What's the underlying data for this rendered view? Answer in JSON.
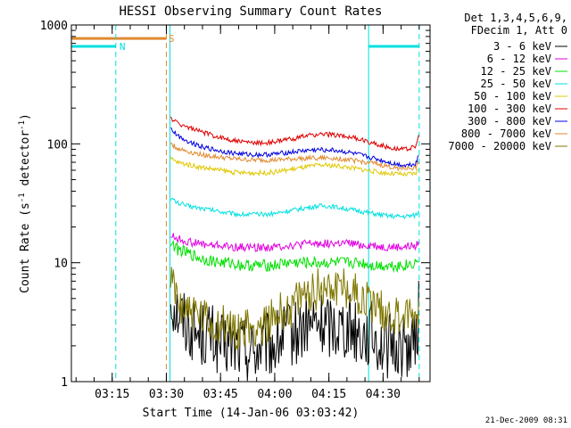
{
  "chart_data": {
    "type": "line",
    "title": "HESSI Observing Summary Count Rates",
    "xlabel": "Start Time (14-Jan-06 03:03:42)",
    "ylabel_main": "Count Rate (s",
    "ylabel_sup1": "-1",
    "ylabel_mid": " detector",
    "ylabel_sup2": "-1",
    "ylabel_end": ")",
    "y_scale": "log",
    "ylim": [
      1,
      1000
    ],
    "xlim": [
      3.0617,
      4.7167
    ],
    "x_ticks": [
      "03:15",
      "03:30",
      "03:45",
      "04:00",
      "04:15",
      "04:30"
    ],
    "y_ticks": [
      "1",
      "10",
      "100",
      "1000"
    ],
    "legend_header": [
      "Det 1,3,4,5,6,9,",
      "FDecim 1, Att 0"
    ],
    "legend_position": "right",
    "footer_date": "21-Dec-2009 08:31",
    "annotations": [
      {
        "text": "N",
        "color": "#00e0e0",
        "x_time": 3.2833,
        "y": 660
      },
      {
        "text": "S",
        "color": "#e08a30",
        "x_time": 3.51,
        "y": 770
      }
    ],
    "flag_bars": [
      {
        "name": "night-bar",
        "color": "#00e0e0",
        "y": 660,
        "start": 3.0617,
        "end": 3.2667
      },
      {
        "name": "saa-bar",
        "color": "#e08a30",
        "y": 770,
        "start": 3.0617,
        "end": 3.5
      },
      {
        "name": "night-bar",
        "color": "#00e0e0",
        "y": 660,
        "start": 4.4333,
        "end": 4.6667
      }
    ],
    "vlines_solid": [
      {
        "x_time": 3.0617,
        "color": "#00e0e0"
      },
      {
        "x_time": 3.5167,
        "color": "#00e0e0"
      },
      {
        "x_time": 4.4333,
        "color": "#00e0e0"
      }
    ],
    "vlines_dashed": [
      {
        "x_time": 3.2667,
        "color": "#00e0e0"
      },
      {
        "x_time": 3.5,
        "color": "#e08a30"
      },
      {
        "x_time": 4.6667,
        "color": "#00e0e0"
      }
    ],
    "series": [
      {
        "name": "3 - 6 keV",
        "color": "#000000",
        "x": [
          3.52,
          3.55,
          3.6,
          3.65,
          3.7,
          3.75,
          3.8,
          3.85,
          3.9,
          3.95,
          4.0,
          4.05,
          4.1,
          4.15,
          4.2,
          4.25,
          4.3,
          4.35,
          4.4,
          4.45,
          4.5,
          4.55,
          4.6,
          4.65,
          4.665
        ],
        "y": [
          5,
          4,
          3,
          2.5,
          2.5,
          2,
          2,
          2,
          1.8,
          2,
          2,
          2.5,
          2.5,
          3,
          3,
          3,
          3,
          3,
          2.5,
          2.5,
          2,
          2,
          2,
          2,
          4
        ]
      },
      {
        "name": "6 - 12 keV",
        "color": "#e000e0",
        "x": [
          3.52,
          3.55,
          3.6,
          3.65,
          3.7,
          3.75,
          3.8,
          3.85,
          3.9,
          3.95,
          4.0,
          4.05,
          4.1,
          4.15,
          4.2,
          4.25,
          4.3,
          4.35,
          4.4,
          4.45,
          4.5,
          4.55,
          4.6,
          4.65,
          4.665
        ],
        "y": [
          17,
          16,
          15,
          14.5,
          14,
          14,
          13.5,
          13.5,
          13.5,
          13.5,
          13.5,
          14,
          14,
          14.5,
          14.5,
          14.5,
          14.5,
          14.5,
          14,
          14,
          13.5,
          13.5,
          13.5,
          14,
          15
        ]
      },
      {
        "name": "12 - 25 keV",
        "color": "#00e000",
        "x": [
          3.52,
          3.55,
          3.6,
          3.65,
          3.7,
          3.75,
          3.8,
          3.85,
          3.9,
          3.95,
          4.0,
          4.05,
          4.1,
          4.15,
          4.2,
          4.25,
          4.3,
          4.35,
          4.4,
          4.45,
          4.5,
          4.55,
          4.6,
          4.65,
          4.665
        ],
        "y": [
          15,
          13,
          12,
          11,
          10.5,
          10,
          10,
          9.5,
          9.5,
          9.5,
          9.5,
          10,
          10,
          10,
          10,
          10,
          10,
          10,
          10,
          9.5,
          9.5,
          9.5,
          9.5,
          10,
          11
        ]
      },
      {
        "name": "25 - 50 keV",
        "color": "#00e0e0",
        "x": [
          3.52,
          3.55,
          3.6,
          3.65,
          3.7,
          3.75,
          3.8,
          3.85,
          3.9,
          3.95,
          4.0,
          4.05,
          4.1,
          4.15,
          4.2,
          4.25,
          4.3,
          4.35,
          4.4,
          4.45,
          4.5,
          4.55,
          4.6,
          4.65,
          4.665
        ],
        "y": [
          35,
          32,
          30,
          29,
          28,
          27,
          26,
          25.5,
          25.5,
          25.5,
          26,
          27,
          28,
          29,
          30,
          30,
          29,
          28,
          27,
          26,
          25,
          24.5,
          24.5,
          25,
          27
        ]
      },
      {
        "name": "50 - 100 keV",
        "color": "#e0c800",
        "x": [
          3.52,
          3.55,
          3.6,
          3.65,
          3.7,
          3.75,
          3.8,
          3.85,
          3.9,
          3.95,
          4.0,
          4.05,
          4.1,
          4.15,
          4.2,
          4.25,
          4.3,
          4.35,
          4.4,
          4.45,
          4.5,
          4.55,
          4.6,
          4.65,
          4.665
        ],
        "y": [
          75,
          70,
          67,
          64,
          62,
          60,
          58,
          57,
          57,
          57,
          58,
          60,
          62,
          64,
          66,
          66,
          65,
          63,
          61,
          59,
          57,
          56,
          55,
          56,
          62
        ]
      },
      {
        "name": "100 - 300 keV",
        "color": "#e00000",
        "x": [
          3.52,
          3.55,
          3.6,
          3.65,
          3.7,
          3.75,
          3.8,
          3.85,
          3.9,
          3.95,
          4.0,
          4.05,
          4.1,
          4.15,
          4.2,
          4.25,
          4.3,
          4.35,
          4.4,
          4.45,
          4.5,
          4.55,
          4.6,
          4.65,
          4.665
        ],
        "y": [
          165,
          150,
          138,
          128,
          120,
          113,
          108,
          104,
          102,
          102,
          104,
          108,
          112,
          117,
          120,
          120,
          118,
          114,
          108,
          102,
          96,
          92,
          90,
          95,
          115
        ]
      },
      {
        "name": "300 - 800 keV",
        "color": "#0000e0",
        "x": [
          3.52,
          3.55,
          3.6,
          3.65,
          3.7,
          3.75,
          3.8,
          3.85,
          3.9,
          3.95,
          4.0,
          4.05,
          4.1,
          4.15,
          4.2,
          4.25,
          4.3,
          4.35,
          4.4,
          4.45,
          4.5,
          4.55,
          4.6,
          4.65,
          4.665
        ],
        "y": [
          135,
          118,
          105,
          97,
          91,
          87,
          84,
          82,
          81,
          81,
          82,
          84,
          86,
          88,
          89,
          89,
          87,
          84,
          80,
          76,
          72,
          68,
          66,
          68,
          80
        ]
      },
      {
        "name": "800 - 7000 keV",
        "color": "#e08a30",
        "x": [
          3.52,
          3.55,
          3.6,
          3.65,
          3.7,
          3.75,
          3.8,
          3.85,
          3.9,
          3.95,
          4.0,
          4.05,
          4.1,
          4.15,
          4.2,
          4.25,
          4.3,
          4.35,
          4.4,
          4.45,
          4.5,
          4.55,
          4.6,
          4.65,
          4.665
        ],
        "y": [
          100,
          92,
          86,
          82,
          79,
          77,
          75,
          74,
          73,
          73,
          73,
          74,
          75,
          76,
          76,
          76,
          75,
          73,
          71,
          69,
          66,
          63,
          62,
          63,
          70
        ]
      },
      {
        "name": "7000 - 20000 keV",
        "color": "#807800",
        "x": [
          3.52,
          3.55,
          3.6,
          3.65,
          3.7,
          3.75,
          3.8,
          3.85,
          3.9,
          3.95,
          4.0,
          4.05,
          4.1,
          4.15,
          4.2,
          4.25,
          4.3,
          4.35,
          4.4,
          4.45,
          4.5,
          4.55,
          4.6,
          4.65,
          4.665
        ],
        "y": [
          7,
          5,
          4,
          3.5,
          3,
          3,
          2.8,
          2.8,
          2.8,
          3,
          3.5,
          4,
          4.5,
          5.5,
          6,
          6.5,
          6.5,
          6,
          5,
          4.5,
          4,
          3.5,
          3.5,
          3.5,
          4
        ]
      }
    ]
  }
}
